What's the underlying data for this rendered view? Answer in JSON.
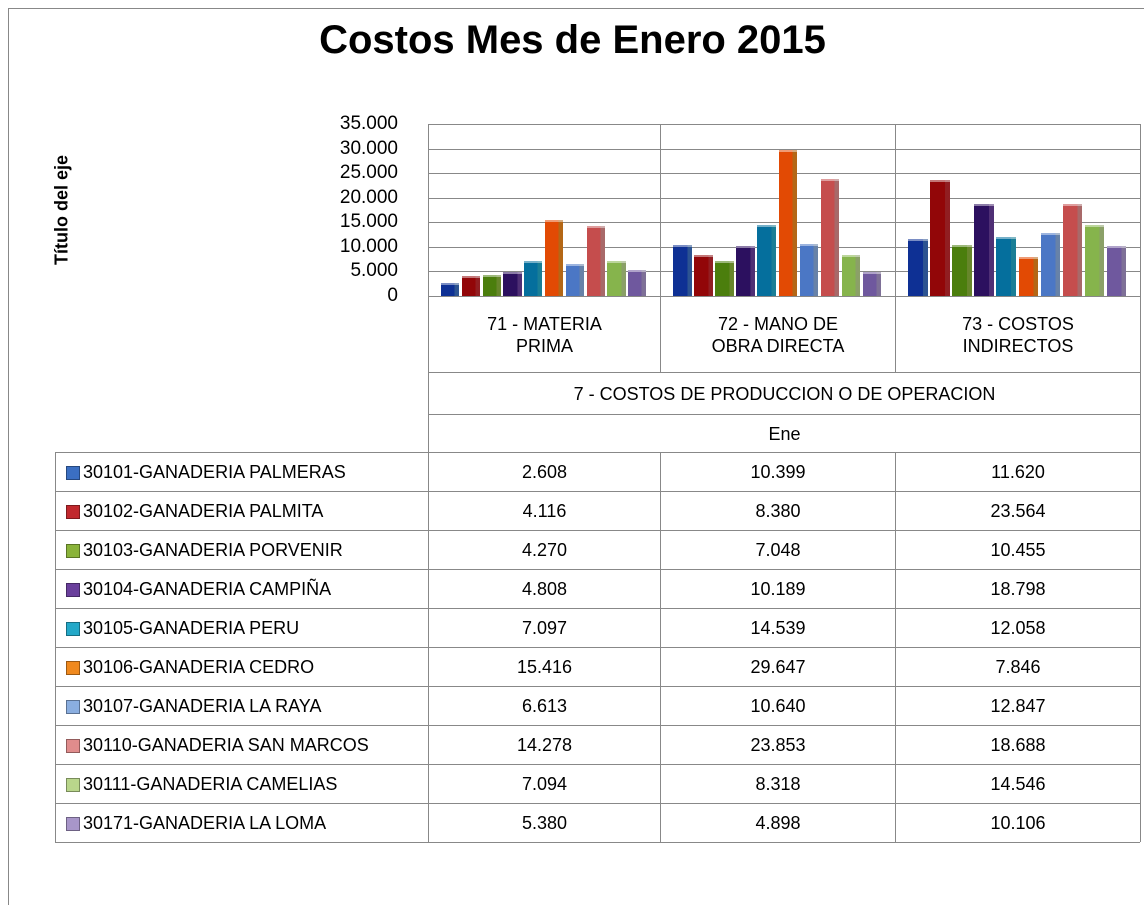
{
  "chart_data": {
    "type": "bar",
    "title": "Costos Mes de Enero 2015",
    "y_axis_label": "Título del eje",
    "categories": [
      "71 - MATERIA PRIMA",
      "72 - MANO DE OBRA DIRECTA",
      "73 - COSTOS INDIRECTOS"
    ],
    "category_group": "7 - COSTOS DE PRODUCCION O DE OPERACION",
    "period": "Ene",
    "ylim": [
      0,
      35000
    ],
    "yticks": [
      0,
      {
        "value": 5000,
        "label": "5.000"
      },
      {
        "value": 10000,
        "label": "10.000"
      },
      {
        "value": 15000,
        "label": "15.000"
      },
      {
        "value": 20000,
        "label": "20.000"
      },
      {
        "value": 25000,
        "label": "25.000"
      },
      {
        "value": 30000,
        "label": "30.000"
      },
      {
        "value": 35000,
        "label": "35.000"
      }
    ],
    "grid": true,
    "series": [
      {
        "name": "30101-GANADERIA PALMERAS",
        "color": "#3b6fc2",
        "values": [
          2608,
          10399,
          11620
        ],
        "value_labels": [
          "2.608",
          "10.399",
          "11.620"
        ]
      },
      {
        "name": "30102-GANADERIA PALMITA",
        "color": "#c1282d",
        "values": [
          4116,
          8380,
          23564
        ],
        "value_labels": [
          "4.116",
          "8.380",
          "23.564"
        ]
      },
      {
        "name": "30103-GANADERIA PORVENIR",
        "color": "#8ab33a",
        "values": [
          4270,
          7048,
          10455
        ],
        "value_labels": [
          "4.270",
          "7.048",
          "10.455"
        ]
      },
      {
        "name": "30104-GANADERIA CAMPIÑA",
        "color": "#6a3f9c",
        "values": [
          4808,
          10189,
          18798
        ],
        "value_labels": [
          "4.808",
          "10.189",
          "18.798"
        ]
      },
      {
        "name": "30105-GANADERIA PERU",
        "color": "#23a8c8",
        "values": [
          7097,
          14539,
          12058
        ],
        "value_labels": [
          "7.097",
          "14.539",
          "12.058"
        ]
      },
      {
        "name": "30106-GANADERIA CEDRO",
        "color": "#f0891e",
        "values": [
          15416,
          29647,
          7846
        ],
        "value_labels": [
          "15.416",
          "29.647",
          "7.846"
        ]
      },
      {
        "name": "30107-GANADERIA LA RAYA",
        "color": "#8aaee0",
        "values": [
          6613,
          10640,
          12847
        ],
        "value_labels": [
          "6.613",
          "10.640",
          "12.847"
        ]
      },
      {
        "name": "30110-GANADERIA SAN MARCOS",
        "color": "#e08c8c",
        "values": [
          14278,
          23853,
          18688
        ],
        "value_labels": [
          "14.278",
          "23.853",
          "18.688"
        ]
      },
      {
        "name": "30111-GANADERIA CAMELIAS",
        "color": "#b9d68b",
        "values": [
          7094,
          8318,
          14546
        ],
        "value_labels": [
          "7.094",
          "8.318",
          "14.546"
        ]
      },
      {
        "name": "30171-GANADERIA LA LOMA",
        "color": "#a896c9",
        "values": [
          5380,
          4898,
          10106
        ],
        "value_labels": [
          "5.380",
          "4.898",
          "10.106"
        ]
      }
    ]
  }
}
